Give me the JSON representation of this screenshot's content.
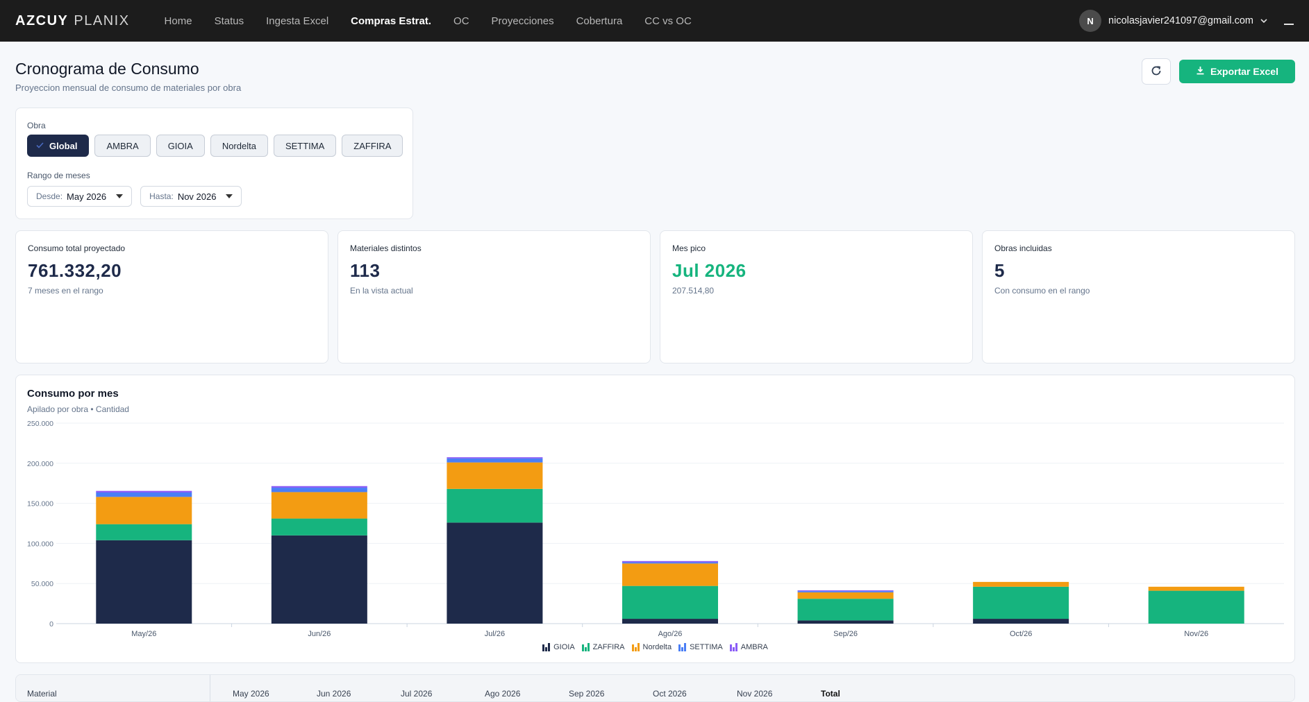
{
  "nav": {
    "brand_a": "AZCUY",
    "brand_b": "PLANIX",
    "items": [
      {
        "label": "Home"
      },
      {
        "label": "Status"
      },
      {
        "label": "Ingesta Excel"
      },
      {
        "label": "Compras Estrat."
      },
      {
        "label": "OC"
      },
      {
        "label": "Proyecciones"
      },
      {
        "label": "Cobertura"
      },
      {
        "label": "CC vs OC"
      }
    ],
    "active_item": "Compras Estrat.",
    "user_initial": "N",
    "user_email": "nicolasjavier241097@gmail.com"
  },
  "header": {
    "title": "Cronograma de Consumo",
    "subtitle": "Proyeccion mensual de consumo de materiales por obra",
    "refresh_icon": "refresh-icon",
    "export_label": "Exportar Excel",
    "export_icon": "download-icon",
    "export_color": "#16b47e"
  },
  "filters": {
    "obra_label": "Obra",
    "obras": [
      {
        "label": "Global",
        "selected": true
      },
      {
        "label": "AMBRA",
        "selected": false
      },
      {
        "label": "GIOIA",
        "selected": false
      },
      {
        "label": "Nordelta",
        "selected": false
      },
      {
        "label": "SETTIMA",
        "selected": false
      },
      {
        "label": "ZAFFIRA",
        "selected": false
      }
    ],
    "range_label": "Rango de meses",
    "desde_label": "Desde:",
    "desde_value": "May 2026",
    "hasta_label": "Hasta:",
    "hasta_value": "Nov 2026"
  },
  "kpis": [
    {
      "label": "Consumo total proyectado",
      "value": "761.332,20",
      "sub": "7 meses en el rango",
      "highlight": false
    },
    {
      "label": "Materiales distintos",
      "value": "113",
      "sub": "En la vista actual",
      "highlight": false
    },
    {
      "label": "Mes pico",
      "value": "Jul 2026",
      "sub": "207.514,80",
      "highlight": true
    },
    {
      "label": "Obras incluidas",
      "value": "5",
      "sub": "Con consumo en el rango",
      "highlight": false
    }
  ],
  "chart": {
    "title": "Consumo por mes",
    "subtitle": "Apilado por obra • Cantidad"
  },
  "chart_data": {
    "type": "bar",
    "stacked": true,
    "categories": [
      "May/26",
      "Jun/26",
      "Jul/26",
      "Ago/26",
      "Sep/26",
      "Oct/26",
      "Nov/26"
    ],
    "series": [
      {
        "name": "GIOIA",
        "color": "#1e2a4a",
        "values": [
          104000,
          110000,
          126000,
          6000,
          4000,
          6000,
          0
        ]
      },
      {
        "name": "ZAFFIRA",
        "color": "#16b47e",
        "values": [
          20000,
          21000,
          42000,
          41000,
          27000,
          40000,
          41000
        ]
      },
      {
        "name": "Nordelta",
        "color": "#f39c12",
        "values": [
          34000,
          33000,
          33000,
          28000,
          8000,
          6000,
          5000
        ]
      },
      {
        "name": "SETTIMA",
        "color": "#4a7ef5",
        "values": [
          5500,
          5500,
          5000,
          1500,
          1500,
          0,
          0
        ]
      },
      {
        "name": "AMBRA",
        "color": "#8b5cf6",
        "values": [
          2000,
          2000,
          1500,
          1500,
          1000,
          0,
          0
        ]
      }
    ],
    "ylim": [
      0,
      250000
    ],
    "yticks": [
      "0",
      "50.000",
      "100.000",
      "150.000",
      "200.000",
      "250.000"
    ],
    "grid": true,
    "legend_position": "bottom-center"
  },
  "table": {
    "columns": [
      "Material",
      "May 2026",
      "Jun 2026",
      "Jul 2026",
      "Ago 2026",
      "Sep 2026",
      "Oct 2026",
      "Nov 2026",
      "Total"
    ]
  }
}
